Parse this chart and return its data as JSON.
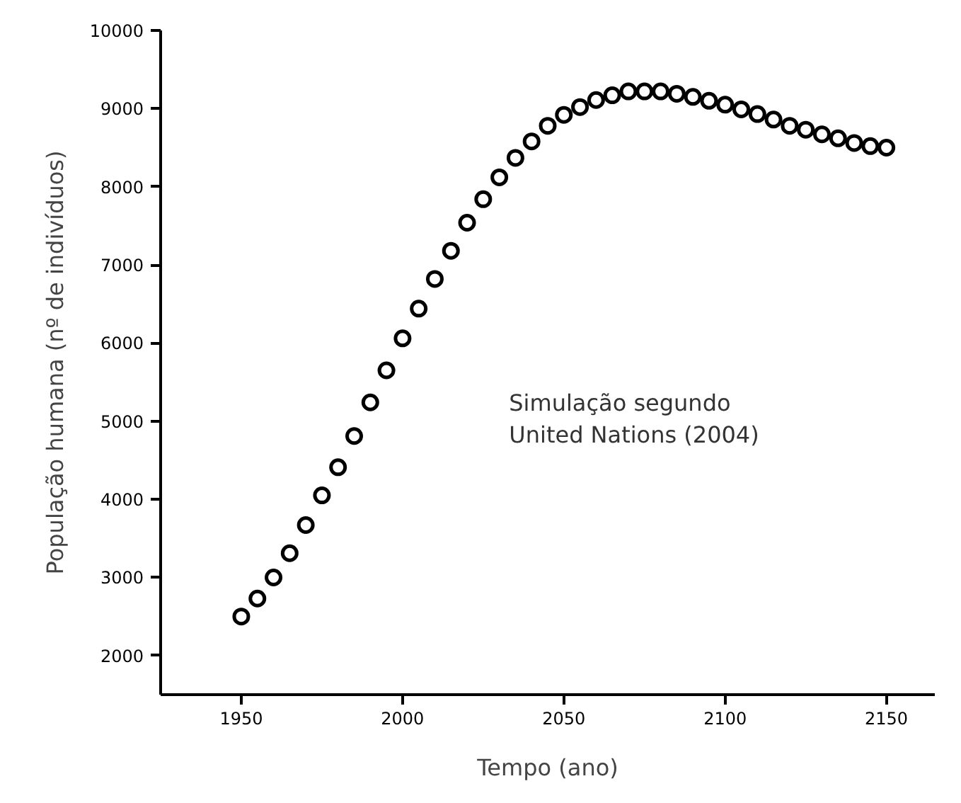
{
  "chart_data": {
    "type": "scatter",
    "xlabel": "Tempo (ano)",
    "ylabel": "População humana (nº de indivíduos)",
    "annotations": [
      "Simulação segundo\nUnited Nations (2004)"
    ],
    "x": [
      1950,
      1955,
      1960,
      1965,
      1970,
      1975,
      1980,
      1985,
      1990,
      1995,
      2000,
      2005,
      2010,
      2015,
      2020,
      2025,
      2030,
      2035,
      2040,
      2045,
      2050,
      2055,
      2060,
      2065,
      2070,
      2075,
      2080,
      2085,
      2090,
      2095,
      2100,
      2105,
      2110,
      2115,
      2120,
      2125,
      2130,
      2135,
      2140,
      2145,
      2150
    ],
    "series": [
      {
        "color": "#000000",
        "values": [
          2500,
          2730,
          3000,
          3310,
          3670,
          4050,
          4410,
          4810,
          5240,
          5650,
          6060,
          6440,
          6820,
          7180,
          7540,
          7840,
          8120,
          8370,
          8580,
          8780,
          8920,
          9020,
          9110,
          9170,
          9220,
          9220,
          9220,
          9190,
          9150,
          9100,
          9050,
          8990,
          8930,
          8860,
          8780,
          8730,
          8670,
          8620,
          8560,
          8520,
          8500
        ]
      }
    ],
    "xlim": [
      1925,
      2165
    ],
    "ylim": [
      1500,
      10000
    ],
    "xticks": [
      1950,
      2000,
      2050,
      2100,
      2150
    ],
    "yticks": [
      2000,
      3000,
      4000,
      5000,
      6000,
      7000,
      8000,
      9000,
      10000
    ],
    "grid": false,
    "marker": "circle"
  }
}
